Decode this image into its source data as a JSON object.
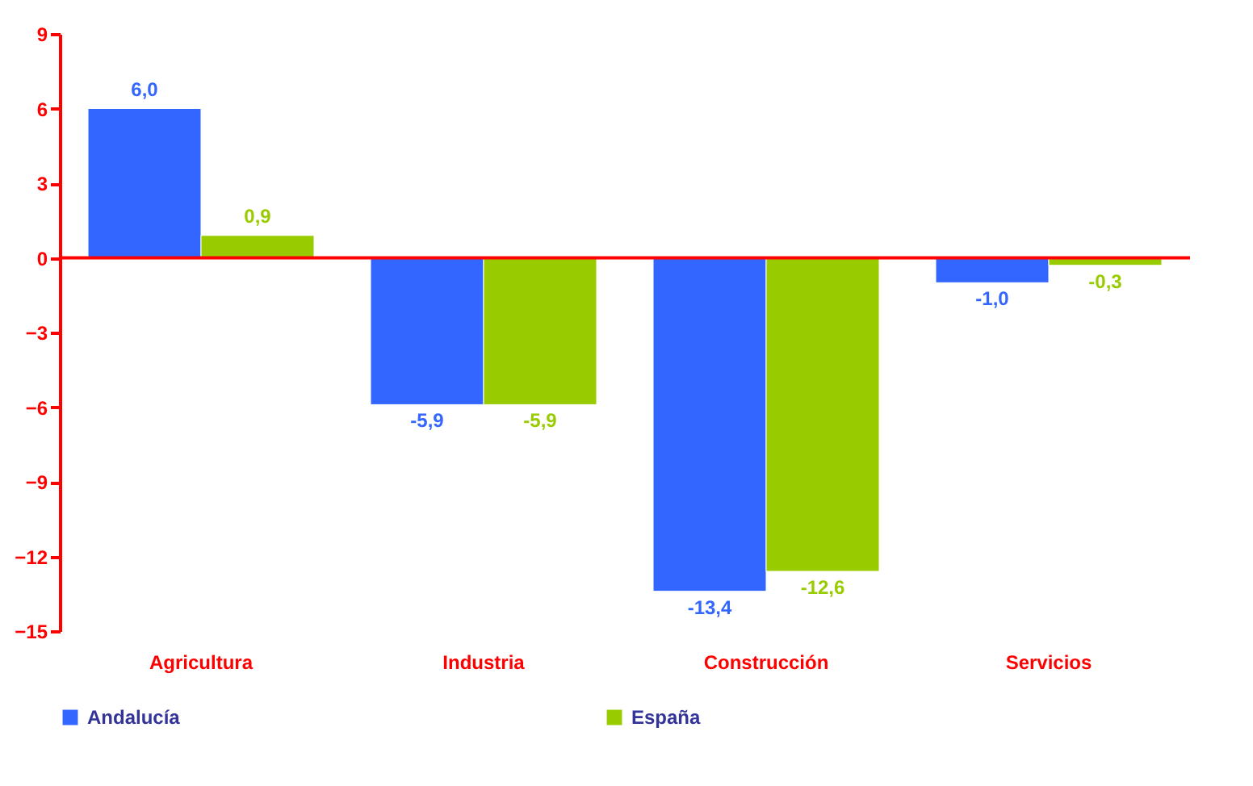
{
  "chart_data": {
    "type": "bar",
    "categories": [
      "Agricultura",
      "Industria",
      "Construcción",
      "Servicios"
    ],
    "series": [
      {
        "name": "Andalucía",
        "color": "#3366ff",
        "values": [
          6.0,
          -5.9,
          -13.4,
          -1.0
        ],
        "value_labels": [
          "6,0",
          "-5,9",
          "-13,4",
          "-1,0"
        ]
      },
      {
        "name": "España",
        "color": "#99cc00",
        "values": [
          0.9,
          -5.9,
          -12.6,
          -0.3
        ],
        "value_labels": [
          "0,9",
          "-5,9",
          "-12,6",
          "-0,3"
        ]
      }
    ],
    "ref_lines": [
      {
        "axis": "y",
        "value": 0,
        "color": "#ff0000"
      }
    ],
    "ylim": [
      -15,
      9
    ],
    "yticks": [
      -15,
      -12,
      -9,
      -6,
      -3,
      0,
      3,
      6,
      9
    ],
    "grid": false,
    "legend": "bottom"
  }
}
